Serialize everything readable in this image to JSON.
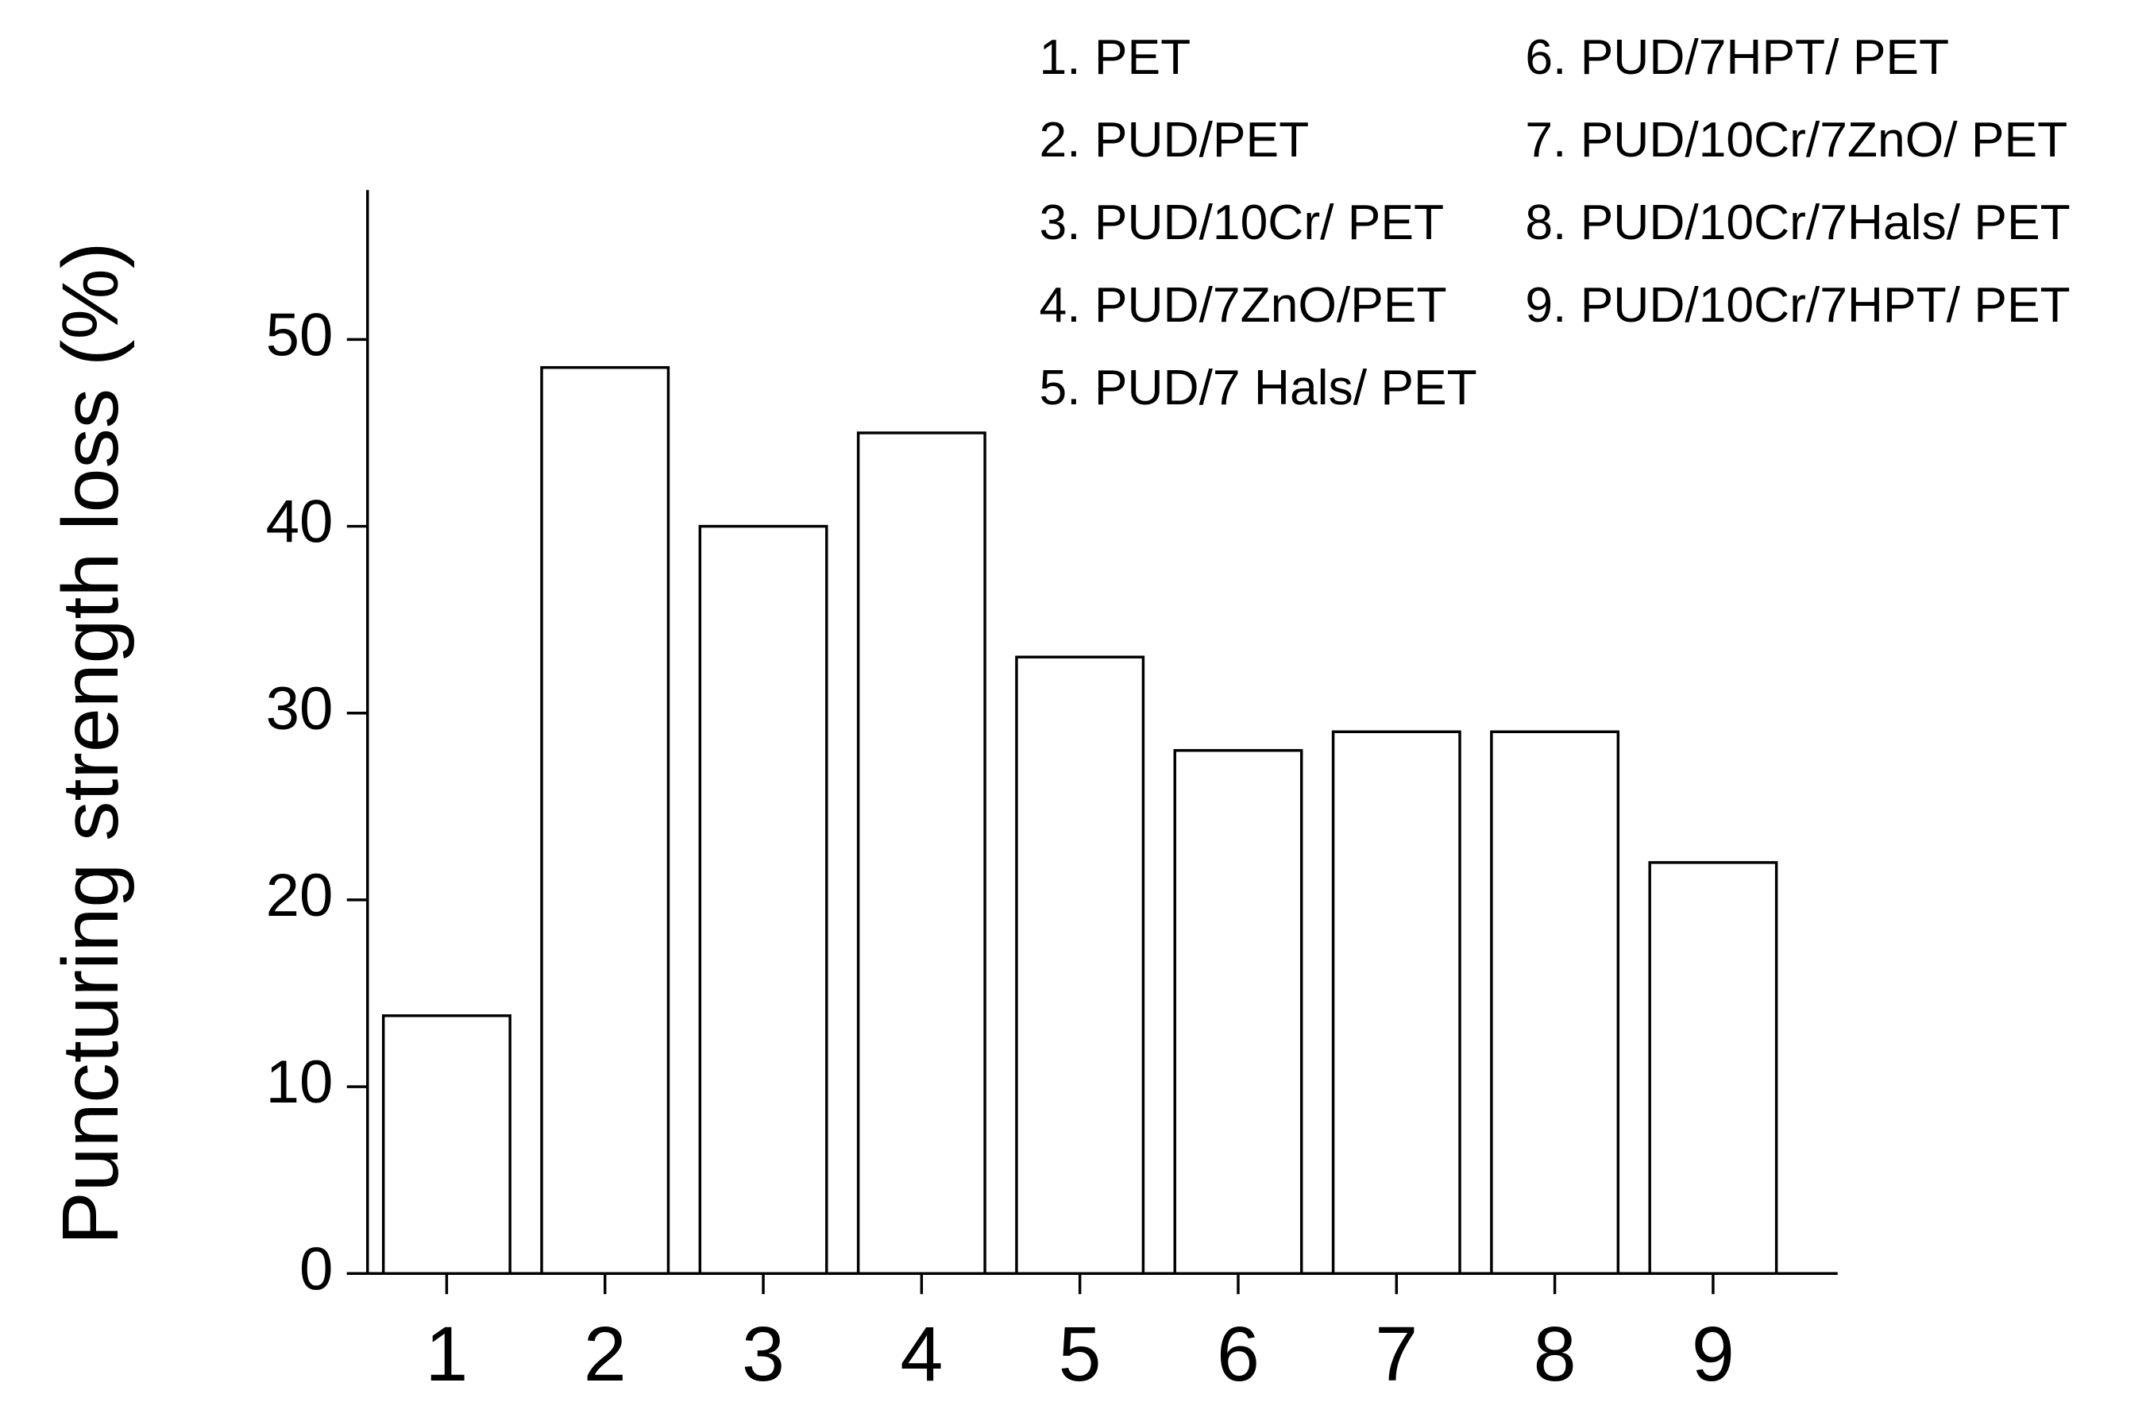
{
  "chart_data": {
    "type": "bar",
    "y_label": "Puncturing strength loss (%)",
    "categories": [
      "1",
      "2",
      "3",
      "4",
      "5",
      "6",
      "7",
      "8",
      "9"
    ],
    "values": [
      13.8,
      48.5,
      40,
      45,
      33,
      28,
      29,
      29,
      22
    ],
    "color": "#ffffff",
    "ylim": [
      0,
      58
    ],
    "yticks": [
      0,
      10,
      20,
      30,
      40,
      50
    ],
    "annotations": [
      "1. PET",
      "2. PUD/PET",
      "3. PUD/10Cr/ PET",
      "4. PUD/7ZnO/PET",
      "5. PUD/7 Hals/ PET",
      "6. PUD/7HPT/ PET",
      "7. PUD/10Cr/7ZnO/ PET",
      "8. PUD/10Cr/7Hals/ PET",
      "9. PUD/10Cr/7HPT/ PET"
    ]
  }
}
